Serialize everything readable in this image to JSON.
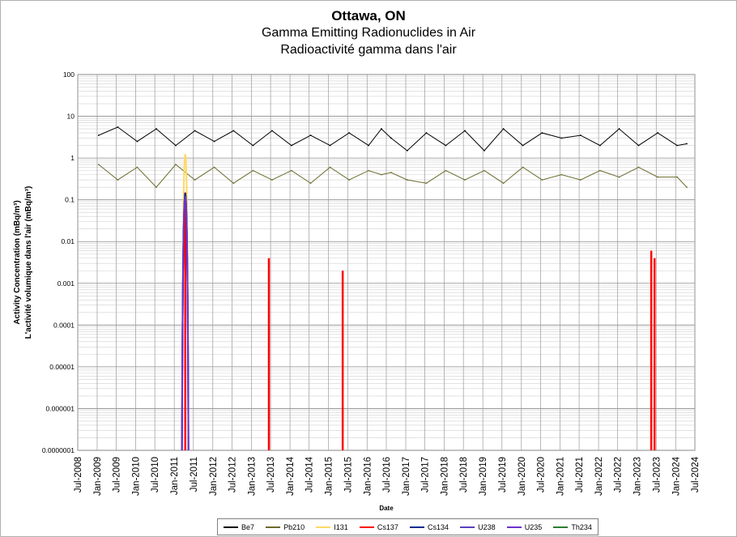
{
  "chart_data": {
    "type": "line",
    "title": "Ottawa, ON",
    "subtitle": [
      "Gamma Emitting Radionuclides in Air",
      "Radioactivité gamma dans l'air"
    ],
    "xlabel": "Date",
    "ylabel": [
      "Activity Concentration  (mBq/m³)",
      "L'activité volumique dans l'air (mBq/m³)"
    ],
    "yscale": "log",
    "ylim": [
      1e-07,
      100
    ],
    "yticks": [
      "100",
      "10",
      "1",
      "0.1",
      "0.01",
      "0.001",
      "0.0001",
      "0.00001",
      "0.000001",
      "0.0000001"
    ],
    "xlim": [
      "2008-07-01",
      "2024-07-01"
    ],
    "xticks": [
      "Jul-2008",
      "Jan-2009",
      "Jul-2009",
      "Jan-2010",
      "Jul-2010",
      "Jan-2011",
      "Jul-2011",
      "Jan-2012",
      "Jul-2012",
      "Jan-2013",
      "Jul-2013",
      "Jan-2014",
      "Jul-2014",
      "Jan-2015",
      "Jul-2015",
      "Jan-2016",
      "Jul-2016",
      "Jan-2017",
      "Jul-2017",
      "Jan-2018",
      "Jul-2018",
      "Jan-2019",
      "Jul-2019",
      "Jan-2020",
      "Jul-2020",
      "Jan-2021",
      "Jul-2021",
      "Jan-2022",
      "Jul-2022",
      "Jan-2023",
      "Jul-2023",
      "Jan-2024",
      "Jul-2024"
    ],
    "grid": true,
    "legend_position": "bottom",
    "series": [
      {
        "name": "Be7",
        "color": "#000000",
        "x": [
          "2009-01",
          "2009-07",
          "2010-01",
          "2010-07",
          "2011-01",
          "2011-07",
          "2012-01",
          "2012-07",
          "2013-01",
          "2013-07",
          "2014-01",
          "2014-07",
          "2015-01",
          "2015-07",
          "2016-01",
          "2016-05",
          "2016-08",
          "2017-01",
          "2017-07",
          "2018-01",
          "2018-07",
          "2019-01",
          "2019-07",
          "2020-01",
          "2020-07",
          "2021-01",
          "2021-07",
          "2022-01",
          "2022-07",
          "2023-01",
          "2023-07",
          "2024-01",
          "2024-04"
        ],
        "values": [
          3.5,
          5.5,
          2.5,
          5.0,
          2.0,
          4.5,
          2.5,
          4.5,
          2.0,
          4.5,
          2.0,
          3.5,
          2.0,
          4.0,
          2.0,
          5.0,
          3.0,
          1.5,
          4.0,
          2.0,
          4.5,
          1.5,
          5.0,
          2.0,
          4.0,
          3.0,
          3.5,
          2.0,
          5.0,
          2.0,
          4.0,
          2.0,
          2.2
        ]
      },
      {
        "name": "Pb210",
        "color": "#6b6b2e",
        "x": [
          "2009-01",
          "2009-07",
          "2010-01",
          "2010-07",
          "2011-01",
          "2011-07",
          "2012-01",
          "2012-07",
          "2013-01",
          "2013-07",
          "2014-01",
          "2014-07",
          "2015-01",
          "2015-07",
          "2016-01",
          "2016-05",
          "2016-08",
          "2017-01",
          "2017-07",
          "2018-01",
          "2018-07",
          "2019-01",
          "2019-07",
          "2020-01",
          "2020-07",
          "2021-01",
          "2021-07",
          "2022-01",
          "2022-07",
          "2023-01",
          "2023-07",
          "2024-01",
          "2024-04"
        ],
        "values": [
          0.7,
          0.3,
          0.6,
          0.2,
          0.7,
          0.3,
          0.6,
          0.25,
          0.5,
          0.3,
          0.5,
          0.25,
          0.6,
          0.3,
          0.5,
          0.4,
          0.45,
          0.3,
          0.25,
          0.5,
          0.3,
          0.5,
          0.25,
          0.6,
          0.3,
          0.4,
          0.3,
          0.5,
          0.35,
          0.6,
          0.35,
          0.35,
          0.2
        ]
      },
      {
        "name": "I131",
        "color": "#ffd966",
        "x": [
          "2011-03",
          "2011-04",
          "2011-05"
        ],
        "values": [
          1e-07,
          1.2,
          1e-07
        ]
      },
      {
        "name": "Cs137",
        "color": "#ff0000",
        "x": [
          "2011-03",
          "2011-04",
          "2011-05",
          "2013-06",
          "2015-05",
          "2023-05",
          "2023-06"
        ],
        "values": [
          1e-07,
          0.15,
          1e-07,
          0.004,
          0.002,
          0.006,
          0.004
        ]
      },
      {
        "name": "Cs134",
        "color": "#002c8f",
        "x": [
          "2011-03",
          "2011-04",
          "2011-05"
        ],
        "values": [
          1e-07,
          0.14,
          1e-07
        ]
      },
      {
        "name": "U238",
        "color": "#5a3fbf",
        "x": [
          "2011-03",
          "2011-04",
          "2011-05"
        ],
        "values": [
          1e-07,
          0.12,
          1e-07
        ]
      },
      {
        "name": "U235",
        "color": "#6a33cc",
        "x": [
          "2011-03",
          "2011-04",
          "2011-05"
        ],
        "values": [
          1e-07,
          0.1,
          1e-07
        ]
      },
      {
        "name": "Th234",
        "color": "#2e7d32",
        "x": [],
        "values": []
      }
    ]
  }
}
